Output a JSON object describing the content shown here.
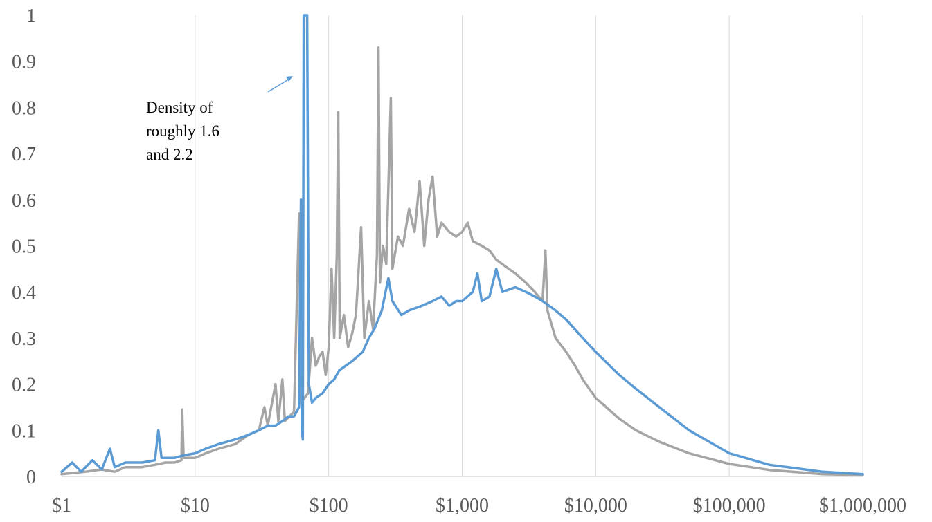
{
  "chart_data": {
    "type": "line",
    "title": "",
    "xlabel": "",
    "ylabel": "",
    "x_scale": "log",
    "xlim": [
      1,
      1000000
    ],
    "ylim": [
      0,
      1
    ],
    "grid": {
      "vertical": true,
      "horizontal": false
    },
    "legend": "none",
    "x_ticks": [
      {
        "value": 1,
        "label": "$1"
      },
      {
        "value": 10,
        "label": "$10"
      },
      {
        "value": 100,
        "label": "$100"
      },
      {
        "value": 1000,
        "label": "$1,000"
      },
      {
        "value": 10000,
        "label": "$10,000"
      },
      {
        "value": 100000,
        "label": "$100,000"
      },
      {
        "value": 1000000,
        "label": "$1,000,000"
      }
    ],
    "y_ticks": [
      {
        "value": 0,
        "label": "0"
      },
      {
        "value": 0.1,
        "label": "0.1"
      },
      {
        "value": 0.2,
        "label": "0.2"
      },
      {
        "value": 0.3,
        "label": "0.3"
      },
      {
        "value": 0.4,
        "label": "0.4"
      },
      {
        "value": 0.5,
        "label": "0.5"
      },
      {
        "value": 0.6,
        "label": "0.6"
      },
      {
        "value": 0.7,
        "label": "0.7"
      },
      {
        "value": 0.8,
        "label": "0.8"
      },
      {
        "value": 0.9,
        "label": "0.9"
      },
      {
        "value": 1,
        "label": "1"
      }
    ],
    "series": [
      {
        "color": "#a5a5a5",
        "points": [
          [
            1,
            0.005
          ],
          [
            1.5,
            0.01
          ],
          [
            2,
            0.015
          ],
          [
            2.5,
            0.01
          ],
          [
            3,
            0.02
          ],
          [
            4,
            0.02
          ],
          [
            5,
            0.025
          ],
          [
            6,
            0.03
          ],
          [
            7,
            0.03
          ],
          [
            7.9,
            0.035
          ],
          [
            8,
            0.145
          ],
          [
            8.2,
            0.04
          ],
          [
            10,
            0.04
          ],
          [
            12,
            0.05
          ],
          [
            15,
            0.06
          ],
          [
            20,
            0.07
          ],
          [
            25,
            0.09
          ],
          [
            30,
            0.1
          ],
          [
            33,
            0.15
          ],
          [
            35,
            0.11
          ],
          [
            40,
            0.2
          ],
          [
            42,
            0.12
          ],
          [
            45,
            0.21
          ],
          [
            47,
            0.12
          ],
          [
            55,
            0.14
          ],
          [
            60,
            0.57
          ],
          [
            62,
            0.16
          ],
          [
            70,
            0.18
          ],
          [
            75,
            0.3
          ],
          [
            80,
            0.24
          ],
          [
            85,
            0.26
          ],
          [
            90,
            0.27
          ],
          [
            95,
            0.22
          ],
          [
            100,
            0.28
          ],
          [
            105,
            0.45
          ],
          [
            110,
            0.3
          ],
          [
            115,
            0.48
          ],
          [
            118,
            0.79
          ],
          [
            121,
            0.3
          ],
          [
            130,
            0.35
          ],
          [
            140,
            0.28
          ],
          [
            150,
            0.31
          ],
          [
            160,
            0.35
          ],
          [
            175,
            0.54
          ],
          [
            185,
            0.3
          ],
          [
            200,
            0.38
          ],
          [
            215,
            0.32
          ],
          [
            230,
            0.48
          ],
          [
            236,
            0.93
          ],
          [
            242,
            0.42
          ],
          [
            255,
            0.5
          ],
          [
            270,
            0.46
          ],
          [
            292,
            0.82
          ],
          [
            300,
            0.45
          ],
          [
            330,
            0.52
          ],
          [
            360,
            0.5
          ],
          [
            400,
            0.58
          ],
          [
            440,
            0.53
          ],
          [
            480,
            0.64
          ],
          [
            520,
            0.5
          ],
          [
            560,
            0.6
          ],
          [
            600,
            0.65
          ],
          [
            650,
            0.52
          ],
          [
            700,
            0.55
          ],
          [
            800,
            0.53
          ],
          [
            900,
            0.52
          ],
          [
            1000,
            0.53
          ],
          [
            1100,
            0.55
          ],
          [
            1200,
            0.51
          ],
          [
            1400,
            0.5
          ],
          [
            1600,
            0.49
          ],
          [
            1800,
            0.47
          ],
          [
            2000,
            0.46
          ],
          [
            2500,
            0.44
          ],
          [
            3000,
            0.42
          ],
          [
            3500,
            0.4
          ],
          [
            4000,
            0.38
          ],
          [
            4200,
            0.49
          ],
          [
            4350,
            0.36
          ],
          [
            5000,
            0.3
          ],
          [
            6000,
            0.27
          ],
          [
            7000,
            0.24
          ],
          [
            8000,
            0.21
          ],
          [
            10000,
            0.17
          ],
          [
            12000,
            0.15
          ],
          [
            15000,
            0.125
          ],
          [
            20000,
            0.1
          ],
          [
            30000,
            0.075
          ],
          [
            50000,
            0.05
          ],
          [
            100000,
            0.027
          ],
          [
            200000,
            0.014
          ],
          [
            500000,
            0.005
          ],
          [
            1000000,
            0.003
          ]
        ]
      },
      {
        "color": "#5b9bd5",
        "points": [
          [
            1,
            0.01
          ],
          [
            1.2,
            0.03
          ],
          [
            1.4,
            0.01
          ],
          [
            1.7,
            0.035
          ],
          [
            2,
            0.015
          ],
          [
            2.3,
            0.06
          ],
          [
            2.5,
            0.02
          ],
          [
            3,
            0.03
          ],
          [
            4,
            0.03
          ],
          [
            5,
            0.035
          ],
          [
            5.3,
            0.1
          ],
          [
            5.6,
            0.04
          ],
          [
            7,
            0.04
          ],
          [
            8,
            0.045
          ],
          [
            10,
            0.05
          ],
          [
            12,
            0.06
          ],
          [
            15,
            0.07
          ],
          [
            20,
            0.08
          ],
          [
            25,
            0.09
          ],
          [
            30,
            0.1
          ],
          [
            35,
            0.11
          ],
          [
            40,
            0.11
          ],
          [
            45,
            0.12
          ],
          [
            50,
            0.13
          ],
          [
            55,
            0.13
          ],
          [
            60,
            0.15
          ],
          [
            62,
            0.6
          ],
          [
            63,
            0.1
          ],
          [
            64,
            0.08
          ],
          [
            65,
            1
          ],
          [
            67,
            1
          ],
          [
            69,
            1
          ],
          [
            71,
            0.2
          ],
          [
            75,
            0.16
          ],
          [
            80,
            0.17
          ],
          [
            90,
            0.18
          ],
          [
            100,
            0.2
          ],
          [
            110,
            0.21
          ],
          [
            120,
            0.23
          ],
          [
            150,
            0.25
          ],
          [
            180,
            0.27
          ],
          [
            200,
            0.3
          ],
          [
            220,
            0.32
          ],
          [
            250,
            0.36
          ],
          [
            280,
            0.43
          ],
          [
            300,
            0.38
          ],
          [
            350,
            0.35
          ],
          [
            400,
            0.36
          ],
          [
            500,
            0.37
          ],
          [
            600,
            0.38
          ],
          [
            700,
            0.39
          ],
          [
            800,
            0.37
          ],
          [
            900,
            0.38
          ],
          [
            1000,
            0.38
          ],
          [
            1200,
            0.4
          ],
          [
            1300,
            0.44
          ],
          [
            1400,
            0.38
          ],
          [
            1600,
            0.39
          ],
          [
            1800,
            0.45
          ],
          [
            2000,
            0.4
          ],
          [
            2500,
            0.41
          ],
          [
            3000,
            0.4
          ],
          [
            3500,
            0.39
          ],
          [
            4000,
            0.38
          ],
          [
            5000,
            0.36
          ],
          [
            6000,
            0.34
          ],
          [
            8000,
            0.3
          ],
          [
            10000,
            0.27
          ],
          [
            15000,
            0.22
          ],
          [
            20000,
            0.19
          ],
          [
            30000,
            0.15
          ],
          [
            50000,
            0.1
          ],
          [
            100000,
            0.05
          ],
          [
            200000,
            0.025
          ],
          [
            500000,
            0.01
          ],
          [
            1000000,
            0.005
          ]
        ]
      }
    ],
    "annotation": {
      "lines": [
        "Density of",
        "roughly 1.6",
        "and 2.2"
      ],
      "arrow_color": "#5b9bd5"
    }
  }
}
